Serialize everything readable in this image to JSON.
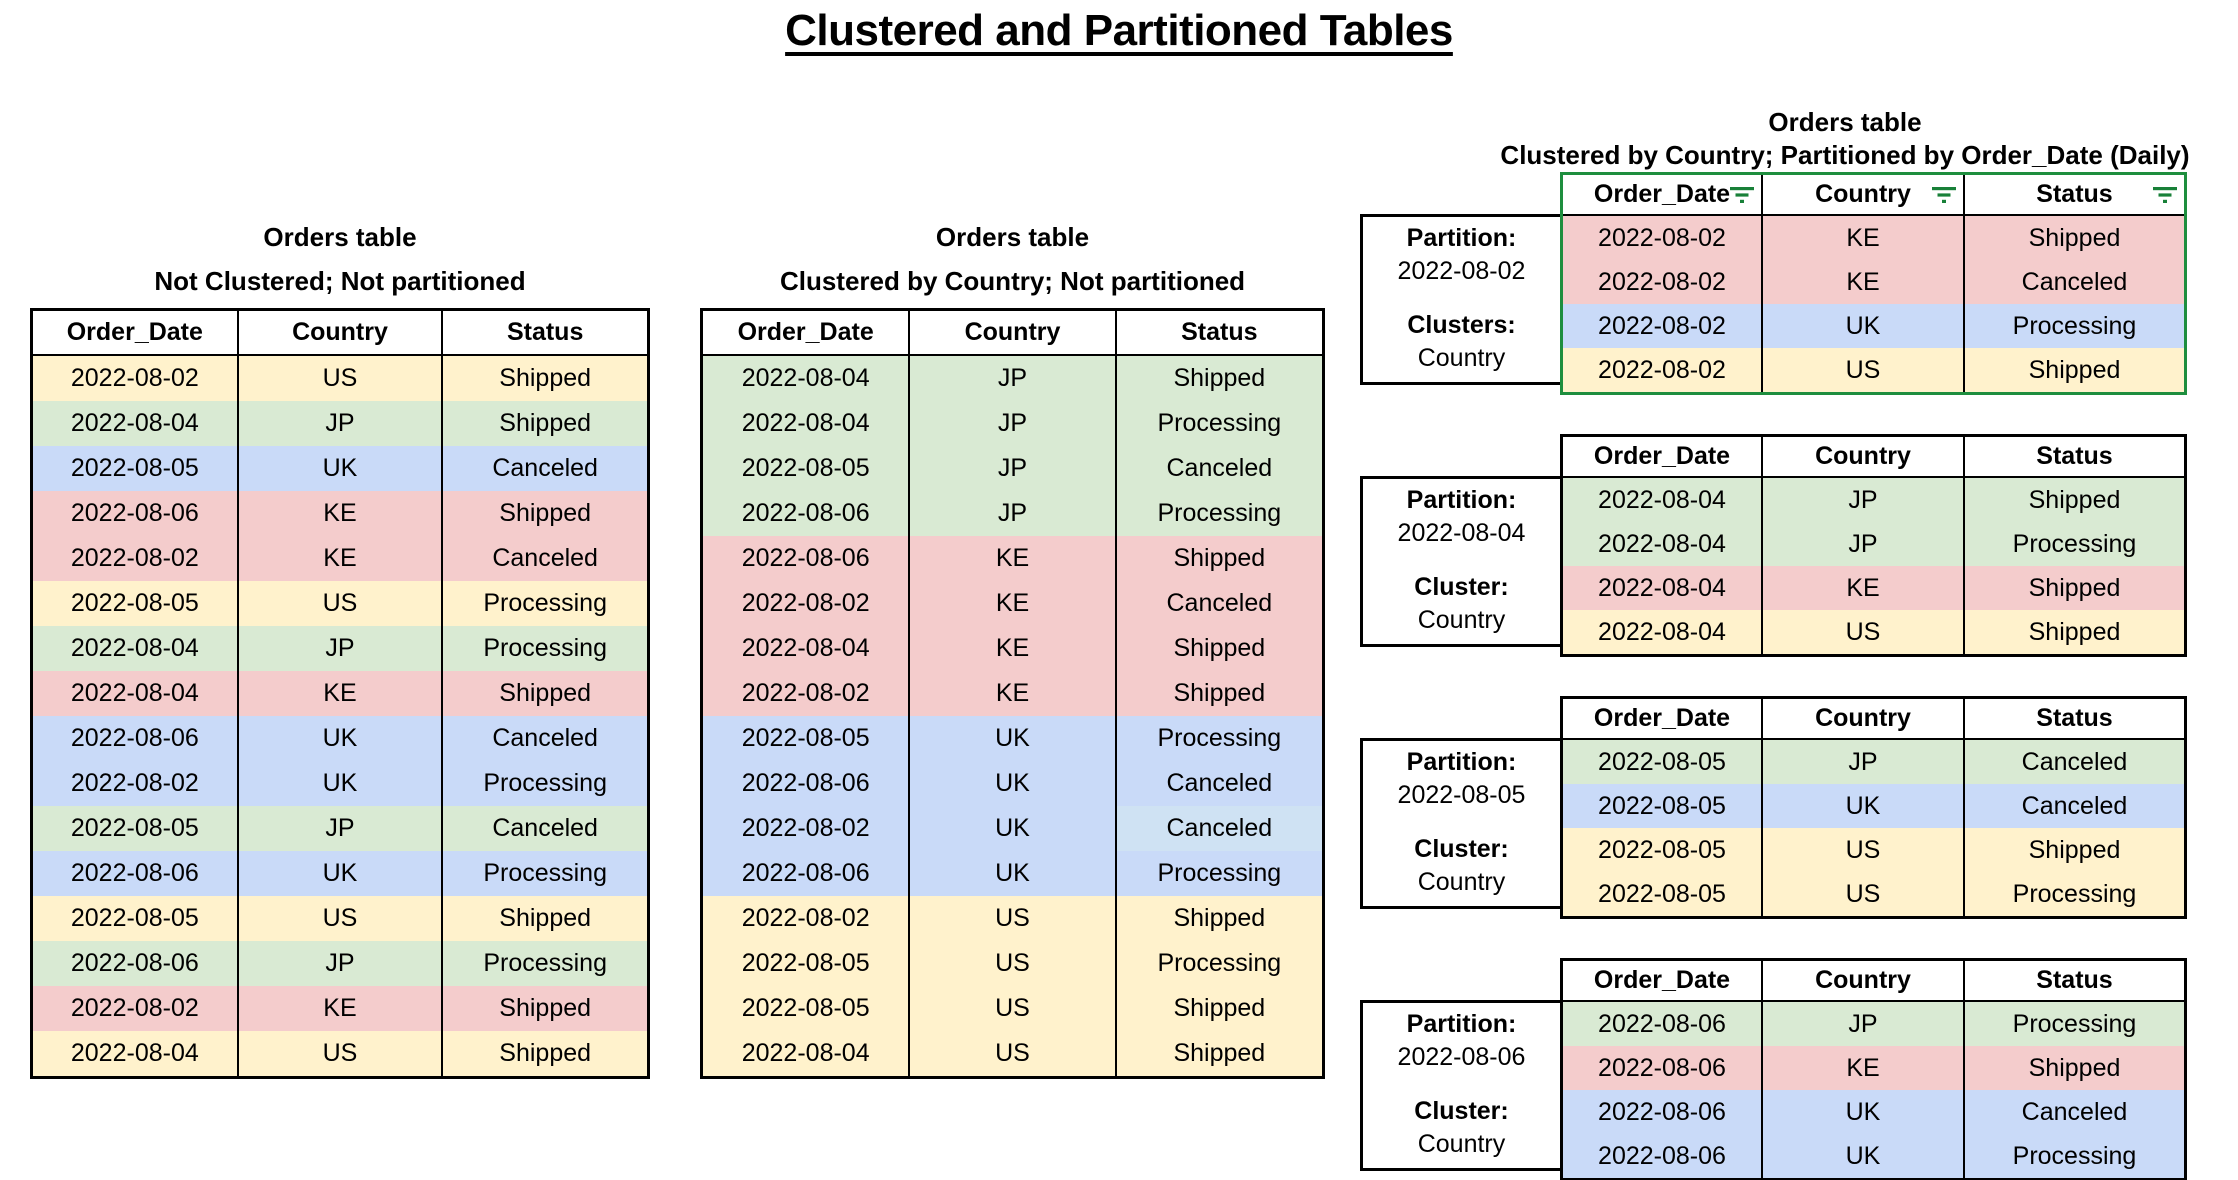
{
  "page_title": "Clustered and Partitioned Tables",
  "columns": [
    "Order_Date",
    "Country",
    "Status"
  ],
  "colors": {
    "country_fill": {
      "US": "#fff2cc",
      "JP": "#d9ead3",
      "UK": "#c9daf8",
      "KE": "#f4cccc"
    },
    "alt_status_fill": "#cfe2f3",
    "filtered_border_green": "#1e8e3e",
    "filter_icon_green": "#188038"
  },
  "tables": {
    "unclustered": {
      "title": "Orders table",
      "subtitle": "Not Clustered; Not partitioned",
      "rows": [
        [
          "2022-08-02",
          "US",
          "Shipped"
        ],
        [
          "2022-08-04",
          "JP",
          "Shipped"
        ],
        [
          "2022-08-05",
          "UK",
          "Canceled"
        ],
        [
          "2022-08-06",
          "KE",
          "Shipped"
        ],
        [
          "2022-08-02",
          "KE",
          "Canceled"
        ],
        [
          "2022-08-05",
          "US",
          "Processing"
        ],
        [
          "2022-08-04",
          "JP",
          "Processing"
        ],
        [
          "2022-08-04",
          "KE",
          "Shipped"
        ],
        [
          "2022-08-06",
          "UK",
          "Canceled"
        ],
        [
          "2022-08-02",
          "UK",
          "Processing"
        ],
        [
          "2022-08-05",
          "JP",
          "Canceled"
        ],
        [
          "2022-08-06",
          "UK",
          "Processing"
        ],
        [
          "2022-08-05",
          "US",
          "Shipped"
        ],
        [
          "2022-08-06",
          "JP",
          "Processing"
        ],
        [
          "2022-08-02",
          "KE",
          "Shipped"
        ],
        [
          "2022-08-04",
          "US",
          "Shipped"
        ]
      ]
    },
    "clustered": {
      "title": "Orders table",
      "subtitle": "Clustered by Country; Not partitioned",
      "rows": [
        [
          "2022-08-04",
          "JP",
          "Shipped"
        ],
        [
          "2022-08-04",
          "JP",
          "Processing"
        ],
        [
          "2022-08-05",
          "JP",
          "Canceled"
        ],
        [
          "2022-08-06",
          "JP",
          "Processing"
        ],
        [
          "2022-08-06",
          "KE",
          "Shipped"
        ],
        [
          "2022-08-02",
          "KE",
          "Canceled"
        ],
        [
          "2022-08-04",
          "KE",
          "Shipped"
        ],
        [
          "2022-08-02",
          "KE",
          "Shipped"
        ],
        [
          "2022-08-05",
          "UK",
          "Processing"
        ],
        [
          "2022-08-06",
          "UK",
          "Canceled"
        ],
        [
          "2022-08-02",
          "UK",
          "Canceled"
        ],
        [
          "2022-08-06",
          "UK",
          "Processing"
        ],
        [
          "2022-08-02",
          "US",
          "Shipped"
        ],
        [
          "2022-08-05",
          "US",
          "Processing"
        ],
        [
          "2022-08-05",
          "US",
          "Shipped"
        ],
        [
          "2022-08-04",
          "US",
          "Shipped"
        ]
      ],
      "cell_overrides": [
        {
          "row": 10,
          "col": 2,
          "fill": "#cfe2f3"
        }
      ]
    },
    "partitioned": {
      "title": "Orders table",
      "subtitle": "Clustered by Country; Partitioned by Order_Date (Daily)",
      "partitions": [
        {
          "partition_label": "Partition:",
          "partition_value": "2022-08-02",
          "cluster_label": "Clusters:",
          "cluster_value": "Country",
          "filtered": true,
          "rows": [
            [
              "2022-08-02",
              "KE",
              "Shipped"
            ],
            [
              "2022-08-02",
              "KE",
              "Canceled"
            ],
            [
              "2022-08-02",
              "UK",
              "Processing"
            ],
            [
              "2022-08-02",
              "US",
              "Shipped"
            ]
          ]
        },
        {
          "partition_label": "Partition:",
          "partition_value": "2022-08-04",
          "cluster_label": "Cluster:",
          "cluster_value": "Country",
          "filtered": false,
          "rows": [
            [
              "2022-08-04",
              "JP",
              "Shipped"
            ],
            [
              "2022-08-04",
              "JP",
              "Processing"
            ],
            [
              "2022-08-04",
              "KE",
              "Shipped"
            ],
            [
              "2022-08-04",
              "US",
              "Shipped"
            ]
          ]
        },
        {
          "partition_label": "Partition:",
          "partition_value": "2022-08-05",
          "cluster_label": "Cluster:",
          "cluster_value": "Country",
          "filtered": false,
          "rows": [
            [
              "2022-08-05",
              "JP",
              "Canceled"
            ],
            [
              "2022-08-05",
              "UK",
              "Canceled"
            ],
            [
              "2022-08-05",
              "US",
              "Shipped"
            ],
            [
              "2022-08-05",
              "US",
              "Processing"
            ]
          ]
        },
        {
          "partition_label": "Partition:",
          "partition_value": "2022-08-06",
          "cluster_label": "Cluster:",
          "cluster_value": "Country",
          "filtered": false,
          "rows": [
            [
              "2022-08-06",
              "JP",
              "Processing"
            ],
            [
              "2022-08-06",
              "KE",
              "Shipped"
            ],
            [
              "2022-08-06",
              "UK",
              "Canceled"
            ],
            [
              "2022-08-06",
              "UK",
              "Processing"
            ]
          ]
        }
      ]
    }
  }
}
